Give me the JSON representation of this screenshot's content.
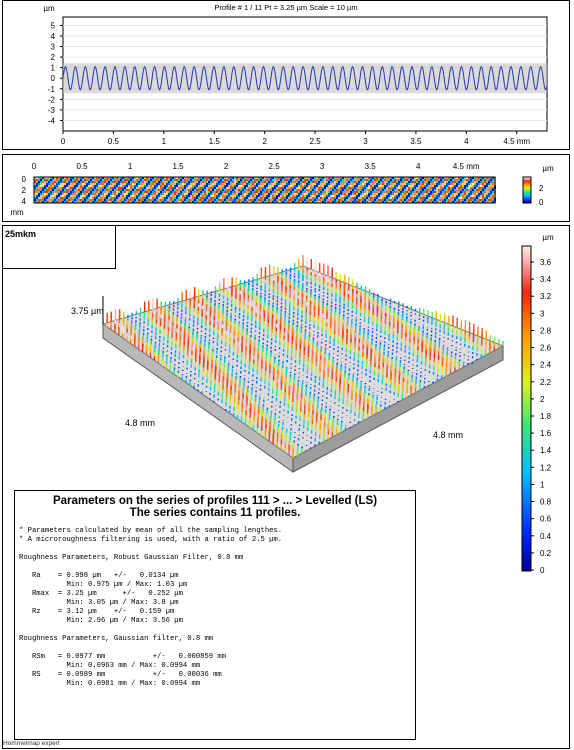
{
  "profile_chart": {
    "title": "Profile # 1 / 11 Pt = 3.25 µm  Scale = 10 µm",
    "y_unit": "µm",
    "x_unit": "mm",
    "y_ticks": [
      "5",
      "4",
      "3",
      "2",
      "1",
      "0",
      "-1",
      "-2",
      "-3",
      "-4"
    ],
    "x_ticks": [
      "0",
      "0.5",
      "1",
      "1.5",
      "2",
      "2.5",
      "3",
      "3.5",
      "4",
      "4.5 mm"
    ],
    "line_color": "#2a35b0",
    "band_color": "#bdbdbd"
  },
  "strip_chart": {
    "x_ticks": [
      "0",
      "0.5",
      "1",
      "1.5",
      "2",
      "2.5",
      "3",
      "3.5",
      "4",
      "4.5 mm"
    ],
    "y_ticks": [
      "0",
      "2",
      "4"
    ],
    "y_unit": "mm",
    "colorbar_unit": "µm",
    "colorbar_ticks": [
      "2",
      "0"
    ]
  },
  "surface_panel": {
    "label": "25mkm",
    "height_label": "3.75 µm",
    "left_dim": "4.8 mm",
    "right_dim": "4.8 mm",
    "colorbar_unit": "µm",
    "colorbar_ticks": [
      "3.6",
      "3.4",
      "3.2",
      "3",
      "2.8",
      "2.6",
      "2.4",
      "2.2",
      "2",
      "1.8",
      "1.6",
      "1.4",
      "1.2",
      "1",
      "0.8",
      "0.6",
      "0.4",
      "0.2",
      "0"
    ]
  },
  "parameters": {
    "title_line1": "Parameters on the series of profiles 111 > ... > Levelled (LS)",
    "title_line2": "The series contains 11 profiles.",
    "note1": "* Parameters calculated by mean of all the sampling lengthes.",
    "note2": "* A microroughness filtering is used, with a ratio of 2.5 µm.",
    "section1": "Roughness Parameters, Robust Gaussian Filter, 0.8 mm",
    "ra": "   Ra    = 0.998 µm   +/-   0.0134 µm",
    "ra_minmax": "           Min: 0.975 µm / Max: 1.03 µm",
    "rmax": "   Rmax  = 3.25 µm      +/-   0.252 µm",
    "rmax_minmax": "           Min: 3.05 µm / Max: 3.8 µm",
    "rz": "   Rz    = 3.12 µm    +/-   0.159 µm",
    "rz_minmax": "           Min: 2.96 µm / Max: 3.56 µm",
    "section2": "Roughness Parameters, Gaussian filter, 0.8 mm",
    "rsm": "   RSm   = 0.0977 mm           +/-   0.000859 mm",
    "rsm_minmax": "           Min: 0.0963 mm / Max: 0.0994 mm",
    "rs": "   RS    = 0.0989 mm           +/-   0.00036 mm",
    "rs_minmax": "           Min: 0.0981 mm / Max: 0.0994 mm"
  },
  "footer_text": "Hommelmap expert"
}
